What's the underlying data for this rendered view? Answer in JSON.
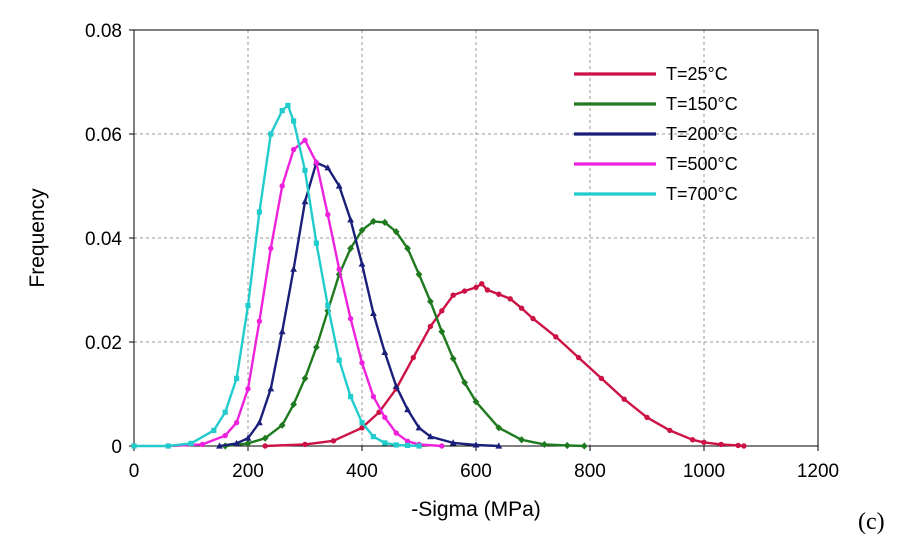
{
  "chart_data": {
    "type": "line",
    "xlabel": "-Sigma (MPa)",
    "ylabel": "Frequency",
    "xlim": [
      0,
      1200
    ],
    "ylim": [
      0,
      0.08
    ],
    "xticks": [
      "0",
      "200",
      "400",
      "600",
      "800",
      "1000",
      "1200"
    ],
    "yticks": [
      "0",
      "0.02",
      "0.04",
      "0.06",
      "0.08"
    ],
    "grid": true,
    "legend": "top-right",
    "panel_label": "(c)",
    "series": [
      {
        "name": " T=25°C",
        "color": "#cc1144",
        "marker": "circle",
        "x": [
          230,
          300,
          350,
          400,
          430,
          460,
          490,
          520,
          540,
          560,
          580,
          600,
          610,
          620,
          640,
          660,
          680,
          700,
          740,
          780,
          820,
          860,
          900,
          940,
          980,
          1000,
          1030,
          1060,
          1070
        ],
        "y": [
          0,
          0.0003,
          0.001,
          0.0035,
          0.0065,
          0.011,
          0.017,
          0.023,
          0.026,
          0.029,
          0.0298,
          0.0305,
          0.0312,
          0.03,
          0.0292,
          0.0283,
          0.0265,
          0.0245,
          0.021,
          0.017,
          0.013,
          0.009,
          0.0055,
          0.003,
          0.0012,
          0.0007,
          0.0003,
          0.0001,
          0
        ]
      },
      {
        "name": "T=150°C",
        "color": "#1f7a1f",
        "marker": "diamond",
        "x": [
          160,
          200,
          230,
          260,
          280,
          300,
          320,
          340,
          360,
          380,
          400,
          420,
          440,
          460,
          480,
          500,
          520,
          540,
          560,
          580,
          600,
          640,
          680,
          720,
          760,
          790
        ],
        "y": [
          0,
          0.0005,
          0.0015,
          0.004,
          0.008,
          0.013,
          0.019,
          0.026,
          0.033,
          0.038,
          0.0415,
          0.0432,
          0.043,
          0.0412,
          0.038,
          0.033,
          0.0278,
          0.022,
          0.0168,
          0.0122,
          0.0085,
          0.0035,
          0.0012,
          0.0003,
          0.0001,
          0
        ]
      },
      {
        "name": "T=200°C",
        "color": "#1a1f7a",
        "marker": "triangle",
        "x": [
          150,
          180,
          200,
          220,
          240,
          260,
          280,
          300,
          320,
          340,
          360,
          380,
          400,
          420,
          440,
          460,
          480,
          500,
          520,
          560,
          600,
          640
        ],
        "y": [
          0,
          0.0005,
          0.0015,
          0.0045,
          0.011,
          0.022,
          0.034,
          0.047,
          0.0545,
          0.0535,
          0.05,
          0.0435,
          0.035,
          0.0255,
          0.018,
          0.0115,
          0.007,
          0.0035,
          0.0018,
          0.0006,
          0.0002,
          0
        ]
      },
      {
        "name": "T=500°C",
        "color": "#ee22dd",
        "marker": "circle",
        "x": [
          60,
          120,
          160,
          180,
          200,
          220,
          240,
          260,
          280,
          300,
          320,
          340,
          360,
          380,
          400,
          420,
          440,
          460,
          480,
          500,
          540
        ],
        "y": [
          0,
          0.0003,
          0.002,
          0.0045,
          0.011,
          0.024,
          0.038,
          0.05,
          0.057,
          0.0588,
          0.0545,
          0.0445,
          0.034,
          0.0245,
          0.016,
          0.0095,
          0.0055,
          0.0025,
          0.0009,
          0.0003,
          0
        ]
      },
      {
        "name": "T=700°C",
        "color": "#22cccc",
        "marker": "square",
        "x": [
          0,
          60,
          100,
          140,
          160,
          180,
          200,
          220,
          240,
          260,
          270,
          280,
          300,
          320,
          340,
          360,
          380,
          400,
          420,
          440,
          460,
          480,
          500
        ],
        "y": [
          0,
          0,
          0.0005,
          0.003,
          0.0065,
          0.013,
          0.027,
          0.045,
          0.06,
          0.0645,
          0.0655,
          0.0625,
          0.053,
          0.039,
          0.027,
          0.0165,
          0.0095,
          0.0045,
          0.0018,
          0.0006,
          0.0002,
          0.0001,
          0
        ]
      }
    ]
  }
}
